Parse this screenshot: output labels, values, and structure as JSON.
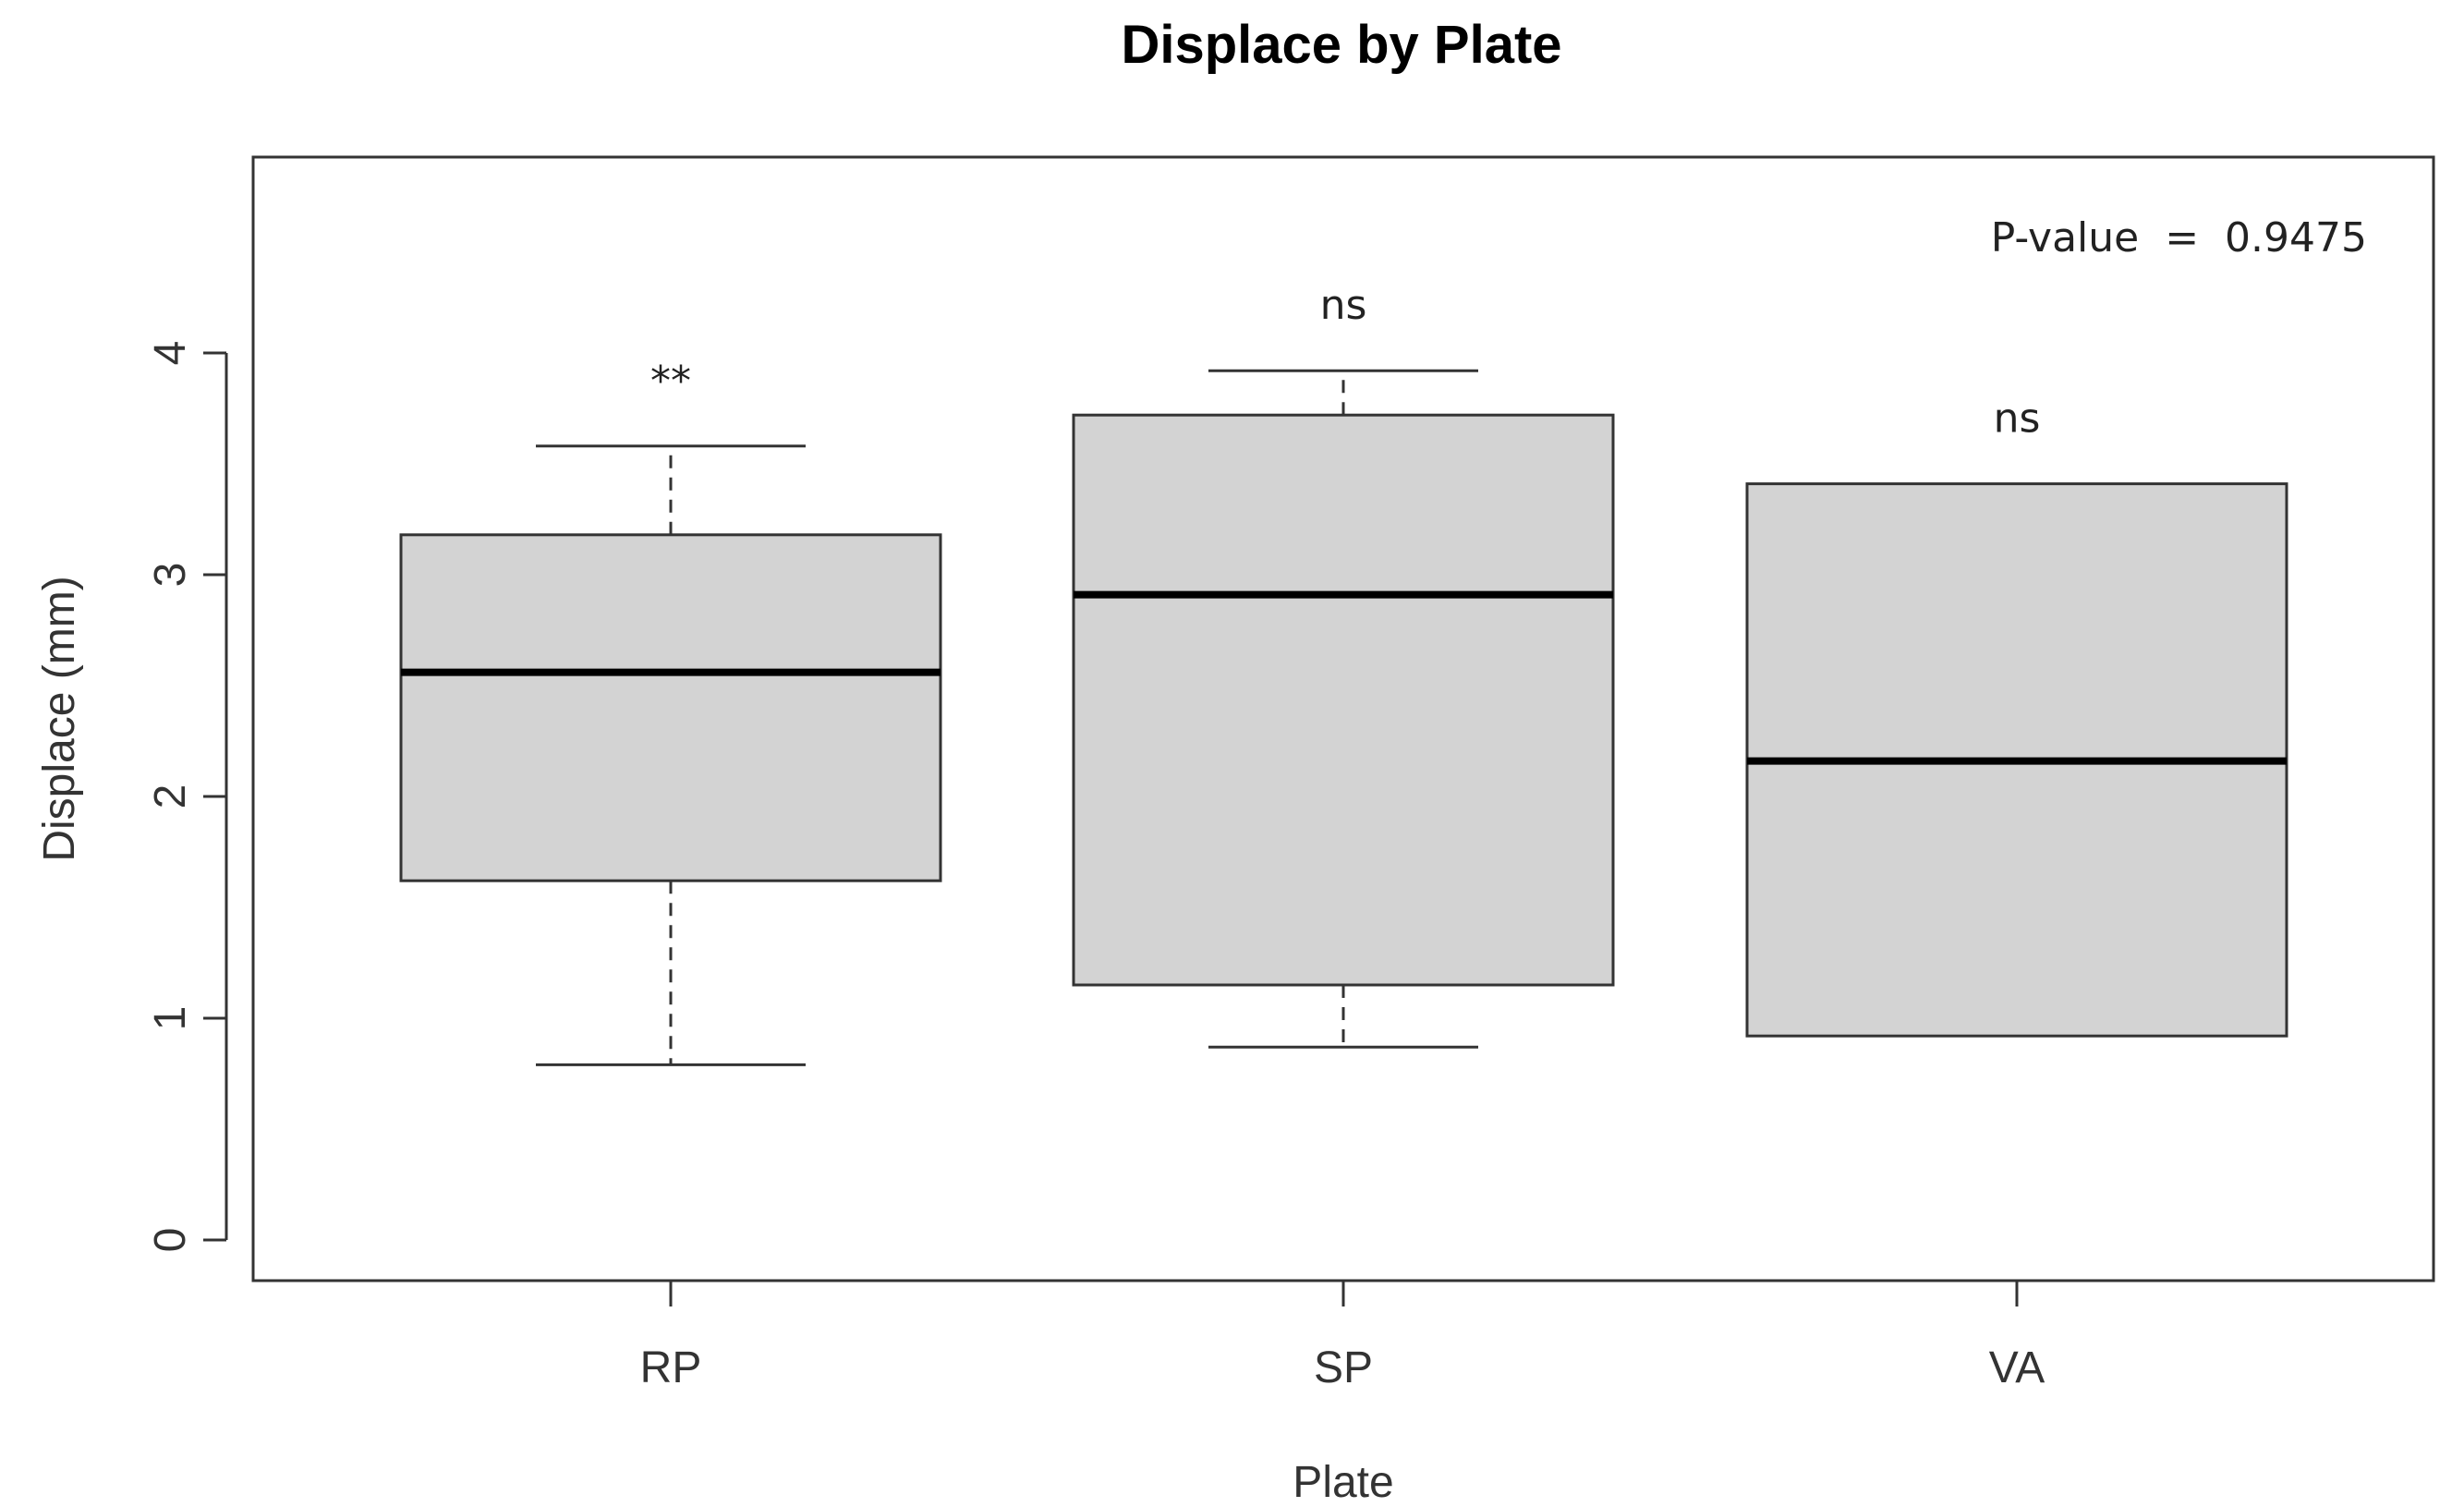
{
  "chart_data": {
    "type": "boxplot",
    "title": "Displace by Plate",
    "xlabel": "Plate",
    "ylabel": "Displace (mm)",
    "ylim": [
      0,
      4.5
    ],
    "yticks": [
      "0",
      "1",
      "2",
      "3",
      "4"
    ],
    "categories": [
      "RP",
      "SP",
      "VA"
    ],
    "boxes": [
      {
        "category": "RP",
        "whisker_low": 0.79,
        "q1": 1.62,
        "median": 2.56,
        "q3": 3.18,
        "whisker_high": 3.58,
        "annotation": "**"
      },
      {
        "category": "SP",
        "whisker_low": 0.87,
        "q1": 1.15,
        "median": 2.91,
        "q3": 3.72,
        "whisker_high": 3.92,
        "annotation": "ns"
      },
      {
        "category": "VA",
        "whisker_low": 0.92,
        "q1": 0.92,
        "median": 2.16,
        "q3": 3.41,
        "whisker_high": 3.41,
        "annotation": "ns"
      }
    ],
    "p_value_text": "P-value  =  0.9475",
    "box_fill": "#d3d3d3",
    "frame_color": "#333333",
    "grid": false
  }
}
